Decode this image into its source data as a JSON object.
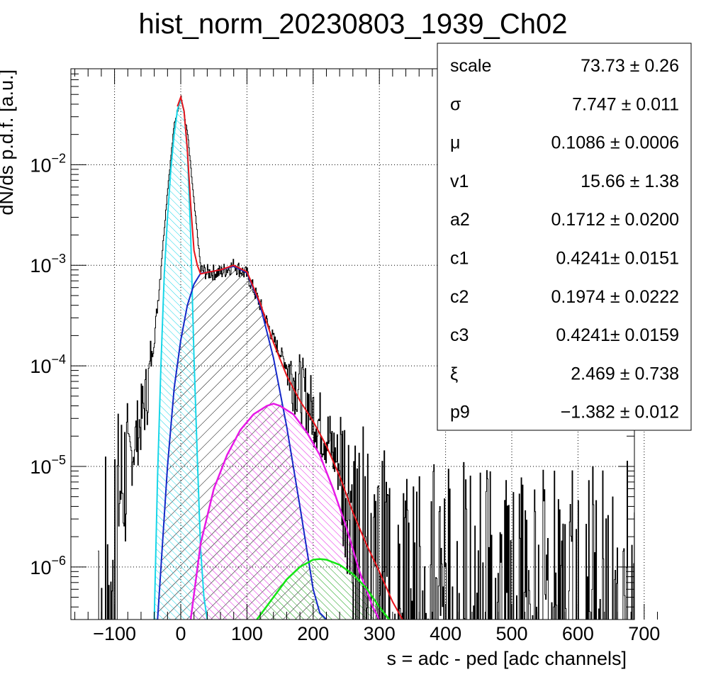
{
  "colors": {
    "data": "#000000",
    "total_fit": "#e8141b",
    "pedestal": "#16d6e8",
    "one_pe": "#1528c8",
    "two_pe": "#e61ae6",
    "three_pe": "#14e614"
  },
  "chart_data": {
    "type": "line",
    "title": "hist_norm_20230803_1939_Ch02",
    "xlabel": "s = adc - ped [adc channels]",
    "ylabel": "dN/ds p.d.f. [a.u.]",
    "xlim": [
      -165,
      725
    ],
    "ylim": [
      3e-07,
      0.09
    ],
    "yscale": "log",
    "grid": true,
    "x_ticks": [
      "−100",
      "0",
      "100",
      "200",
      "300",
      "400",
      "500",
      "600",
      "700"
    ],
    "x_tick_values": [
      -100,
      0,
      100,
      200,
      300,
      400,
      500,
      600,
      700
    ],
    "y_ticks": [
      {
        "value": 1e-06,
        "base": "10",
        "exp": "−6"
      },
      {
        "value": 1e-05,
        "base": "10",
        "exp": "−5"
      },
      {
        "value": 0.0001,
        "base": "10",
        "exp": "−4"
      },
      {
        "value": 0.001,
        "base": "10",
        "exp": "−3"
      },
      {
        "value": 0.01,
        "base": "10",
        "exp": "−2"
      }
    ],
    "series": [
      {
        "type": "histogram",
        "x": [
          -120,
          -100,
          -80,
          -60,
          -50,
          -40,
          -30,
          -20,
          -10,
          0,
          10,
          20,
          30,
          40,
          60,
          80,
          100,
          120,
          140,
          160,
          180,
          200,
          220,
          240,
          260,
          280,
          300,
          350,
          400,
          500,
          600,
          700
        ],
        "y": [
          1.5e-06,
          4e-06,
          1e-05,
          3e-05,
          6e-05,
          0.0002,
          0.001,
          0.006,
          0.026,
          0.048,
          0.02,
          0.004,
          0.0009,
          0.00085,
          0.00085,
          0.001,
          0.0008,
          0.0004,
          0.00018,
          0.0001,
          6e-05,
          3.5e-05,
          2e-05,
          1e-05,
          5e-06,
          3e-06,
          2e-06,
          1.5e-06,
          1.5e-06,
          1.5e-06,
          1.5e-06,
          1.5e-06
        ]
      },
      {
        "type": "fit-total",
        "x": [
          -5,
          0,
          5,
          10,
          15,
          20,
          25,
          30,
          40,
          60,
          80,
          100,
          120,
          140,
          160,
          180,
          200,
          220,
          240,
          260,
          280,
          300,
          320,
          335
        ],
        "y": [
          0.038,
          0.047,
          0.034,
          0.014,
          0.004,
          0.0014,
          0.001,
          0.00082,
          0.00085,
          0.0009,
          0.001,
          0.00086,
          0.00042,
          0.00017,
          8e-05,
          4.5e-05,
          2.8e-05,
          1.6e-05,
          8e-06,
          3.5e-06,
          1.7e-06,
          9e-07,
          4.5e-07,
          3e-07
        ]
      },
      {
        "type": "component-pedestal",
        "x": [
          -40,
          -35,
          -30,
          -25,
          -20,
          -15,
          -10,
          -5,
          0,
          5,
          10,
          15,
          20,
          25,
          30,
          35,
          40
        ],
        "y": [
          3e-07,
          8e-06,
          0.0001,
          0.0008,
          0.003,
          0.009,
          0.02,
          0.035,
          0.046,
          0.034,
          0.014,
          0.002,
          0.00012,
          1.2e-05,
          1.5e-06,
          5e-07,
          3e-07
        ]
      },
      {
        "type": "component-1pe",
        "x": [
          -35,
          -20,
          -10,
          0,
          10,
          20,
          30,
          40,
          60,
          80,
          100,
          120,
          140,
          160,
          180,
          200,
          210,
          220
        ],
        "y": [
          3e-07,
          1e-05,
          6e-05,
          0.00018,
          0.0004,
          0.00065,
          0.00083,
          0.00085,
          0.0009,
          0.00098,
          0.00084,
          0.0004,
          0.00012,
          2.5e-05,
          4e-06,
          6e-07,
          3.5e-07,
          3e-07
        ]
      },
      {
        "type": "component-2pe",
        "x": [
          15,
          30,
          50,
          70,
          90,
          110,
          130,
          140,
          150,
          170,
          190,
          210,
          230,
          250,
          270,
          290,
          300
        ],
        "y": [
          3e-07,
          1.7e-06,
          6e-06,
          1.3e-05,
          2.3e-05,
          3.3e-05,
          4e-05,
          4.2e-05,
          4e-05,
          3.3e-05,
          2.2e-05,
          1.3e-05,
          6e-06,
          2.5e-06,
          9e-07,
          4e-07,
          3e-07
        ]
      },
      {
        "type": "component-3pe",
        "x": [
          115,
          140,
          160,
          180,
          200,
          210,
          220,
          240,
          260,
          280,
          300,
          315
        ],
        "y": [
          3e-07,
          5e-07,
          7.5e-07,
          1e-06,
          1.18e-06,
          1.2e-06,
          1.18e-06,
          1.05e-06,
          8.5e-07,
          6.2e-07,
          4e-07,
          3e-07
        ]
      }
    ],
    "stats_box": {
      "placement": "top-right",
      "rows": [
        {
          "name": "scale",
          "value": "73.73 ± 0.26"
        },
        {
          "name": "σ",
          "value": "7.747 ± 0.011"
        },
        {
          "name": "μ",
          "value": "0.1086 ± 0.0006"
        },
        {
          "name": "v1",
          "value": "15.66 ± 1.38"
        },
        {
          "name": "a2",
          "value": "0.1712 ± 0.0200"
        },
        {
          "name": "c1",
          "value": "0.4241± 0.0151"
        },
        {
          "name": "c2",
          "value": "0.1974 ± 0.0222"
        },
        {
          "name": "c3",
          "value": "0.4241± 0.0159"
        },
        {
          "name": "ξ",
          "value": "2.469 ± 0.738"
        },
        {
          "name": "p9",
          "value": "−1.382 ± 0.012"
        }
      ]
    }
  }
}
